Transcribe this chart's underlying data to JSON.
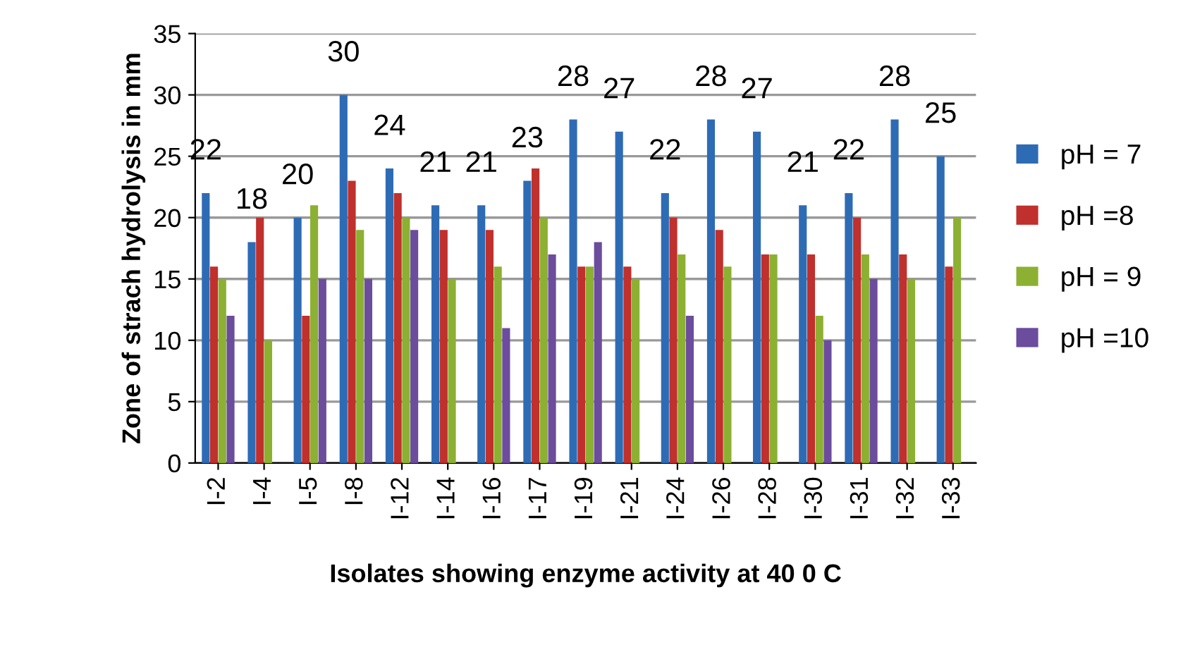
{
  "chart_data": {
    "type": "bar",
    "xlabel": "Isolates showing enzyme activity at 40 0 C",
    "ylabel": "Zone of strach hydrolysis in mm",
    "categories": [
      "I-2",
      "I-4",
      "I-5",
      "I-8",
      "I-12",
      "I-14",
      "I-16",
      "I-17",
      "I-19",
      "I-21",
      "I-24",
      "I-26",
      "I-28",
      "I-30",
      "I-31",
      "I-32",
      "I-33"
    ],
    "series": [
      {
        "name": "pH = 7",
        "color": "#2e6bb5",
        "values": [
          22,
          18,
          20,
          30,
          24,
          21,
          21,
          23,
          28,
          27,
          22,
          28,
          27,
          21,
          22,
          28,
          25
        ],
        "value_labels": [
          "22",
          "18",
          "20",
          "30",
          "24",
          "21",
          "21",
          "23",
          "28",
          "27",
          "22",
          "28",
          "27",
          "21",
          "22",
          "28",
          "25"
        ]
      },
      {
        "name": "pH =8",
        "color": "#c0302c",
        "values": [
          16,
          20,
          12,
          23,
          22,
          19,
          19,
          24,
          16,
          16,
          20,
          19,
          17,
          17,
          20,
          17,
          16
        ]
      },
      {
        "name": "pH = 9",
        "color": "#8cb032",
        "values": [
          15,
          10,
          21,
          19,
          20,
          15,
          16,
          20,
          16,
          15,
          17,
          16,
          17,
          12,
          17,
          15,
          20
        ]
      },
      {
        "name": "pH =10",
        "color": "#6c4c9c",
        "values": [
          12,
          null,
          15,
          15,
          19,
          null,
          11,
          17,
          18,
          null,
          12,
          null,
          null,
          10,
          15,
          null,
          null
        ]
      }
    ],
    "ylim": [
      0,
      35
    ],
    "yticks": [
      0,
      5,
      10,
      15,
      20,
      25,
      30,
      35
    ],
    "grid": "y",
    "legend": "right"
  }
}
